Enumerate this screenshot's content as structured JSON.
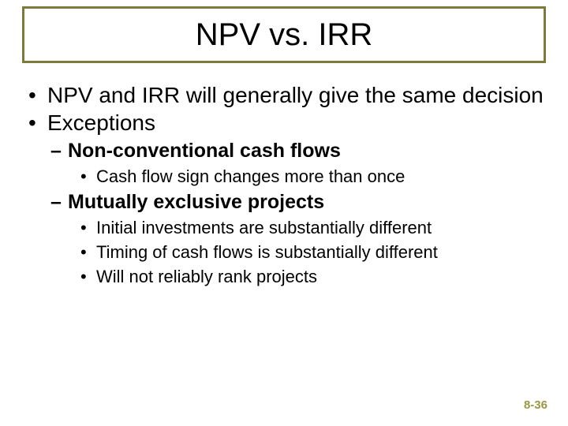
{
  "colors": {
    "title_border": "#7d7a3a",
    "page_num": "#9a9744",
    "text": "#000000",
    "bg": "#ffffff"
  },
  "title": "NPV vs. IRR",
  "bullets": {
    "l1a": "NPV and IRR will generally give the same decision",
    "l1b": "Exceptions",
    "l2a": "Non-conventional cash flows",
    "l3a": "Cash flow sign changes more than once",
    "l2b": "Mutually exclusive projects",
    "l3b": "Initial investments are substantially different",
    "l3c": "Timing of cash flows is substantially different",
    "l3d": "Will not reliably rank projects"
  },
  "page_number": "8-36"
}
